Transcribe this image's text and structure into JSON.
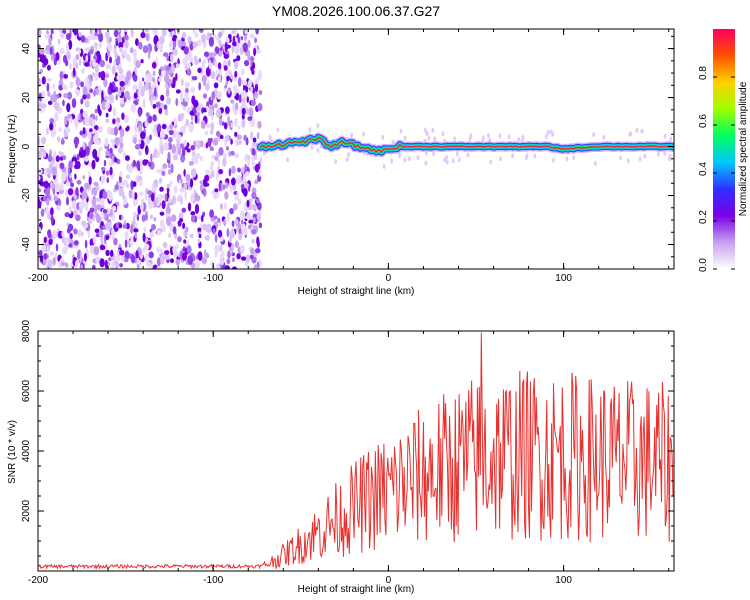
{
  "title": "YM08.2026.100.06.37.G27",
  "colors": {
    "snr_line": "#e8302e",
    "ridge_core": "#e8302e",
    "axis": "#000000"
  },
  "chart_data": [
    {
      "type": "heatmap",
      "name": "spectrogram",
      "xlabel": "Height of straight line (km)",
      "ylabel": "Frequency (Hz)",
      "xlim": [
        -200,
        163
      ],
      "ylim": [
        -50,
        48
      ],
      "x_ticks": [
        -200,
        -100,
        0,
        100
      ],
      "y_ticks": [
        -40,
        -20,
        0,
        20,
        40
      ],
      "noise_region_x": [
        -200,
        -73
      ],
      "ridge": {
        "description": "narrow-band signal near 0 Hz",
        "x": [
          -73,
          -60,
          -50,
          -40,
          -32,
          -25,
          -18,
          -10,
          -5,
          0,
          5,
          10,
          30,
          60,
          90,
          100,
          120,
          140,
          163
        ],
        "freq_hz": [
          0,
          1,
          2,
          3,
          0,
          2,
          0,
          -1,
          -2,
          -1,
          0,
          0,
          0,
          0,
          0,
          -1,
          0,
          0,
          0
        ]
      },
      "colorbar": {
        "label": "Normalized spectral amplitude",
        "range": [
          0,
          1
        ],
        "ticks": [
          "0.0",
          "0.2",
          "0.4",
          "0.6",
          "0.8"
        ],
        "colormap": [
          "#ffffff",
          "#c7a0f0",
          "#7b00e8",
          "#3030ff",
          "#00c8ff",
          "#00ff60",
          "#a0ff00",
          "#ffd000",
          "#ff5000",
          "#ff0060"
        ]
      }
    },
    {
      "type": "line",
      "name": "snr",
      "xlabel": "Height of straight line (km)",
      "ylabel": "SNR (10 * v/v)",
      "xlim": [
        -200,
        163
      ],
      "ylim": [
        0,
        8000
      ],
      "x_ticks": [
        -200,
        -100,
        0,
        100
      ],
      "y_ticks": [
        2000,
        4000,
        6000,
        8000
      ],
      "trend": {
        "x": [
          -200,
          -72,
          -65,
          -55,
          -45,
          -35,
          -25,
          -15,
          -5,
          5,
          15,
          25,
          35,
          45,
          55,
          70,
          90,
          110,
          130,
          150,
          163
        ],
        "mean_snr": [
          150,
          160,
          350,
          700,
          1100,
          1500,
          1900,
          2250,
          2550,
          2800,
          3050,
          3300,
          3500,
          3700,
          3800,
          3850,
          3900,
          3800,
          3700,
          3650,
          3550
        ]
      },
      "peak": {
        "x": 53,
        "snr": 7950
      }
    }
  ]
}
